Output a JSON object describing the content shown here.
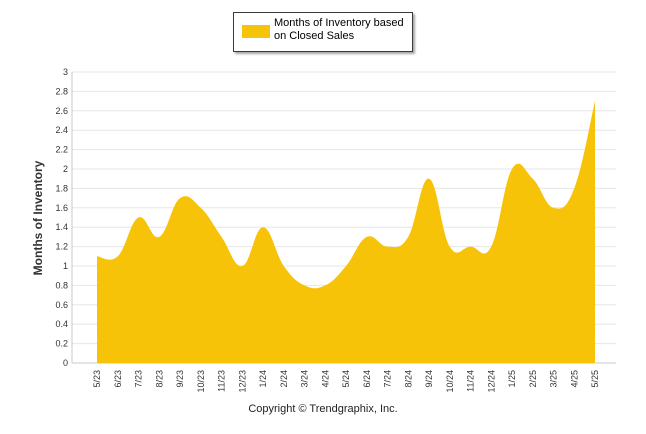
{
  "chart_data": {
    "type": "area",
    "ylabel": "Months of Inventory",
    "xlabel": "",
    "ylim": [
      0,
      3
    ],
    "yticks": [
      "0",
      "0.2",
      "0.4",
      "0.6",
      "0.8",
      "1",
      "1.2",
      "1.4",
      "1.6",
      "1.8",
      "2",
      "2.2",
      "2.4",
      "2.6",
      "2.8",
      "3"
    ],
    "grid": true,
    "legend_position": "top-center",
    "categories": [
      "5/23",
      "6/23",
      "7/23",
      "8/23",
      "9/23",
      "10/23",
      "11/23",
      "12/23",
      "1/24",
      "2/24",
      "3/24",
      "4/24",
      "5/24",
      "6/24",
      "7/24",
      "8/24",
      "9/24",
      "10/24",
      "11/24",
      "12/24",
      "1/25",
      "2/25",
      "3/25",
      "4/25",
      "5/25"
    ],
    "series": [
      {
        "name": "Months of Inventory based on Closed Sales",
        "color": "#f7c308",
        "values": [
          1.1,
          1.1,
          1.5,
          1.3,
          1.7,
          1.6,
          1.3,
          1.0,
          1.4,
          1.0,
          0.8,
          0.8,
          1.0,
          1.3,
          1.2,
          1.3,
          1.9,
          1.2,
          1.2,
          1.2,
          2.0,
          1.9,
          1.6,
          1.8,
          2.7
        ]
      }
    ]
  },
  "legend": {
    "label": "Months of Inventory based on Closed Sales"
  },
  "footer": {
    "copyright": "Copyright © Trendgraphix, Inc."
  }
}
